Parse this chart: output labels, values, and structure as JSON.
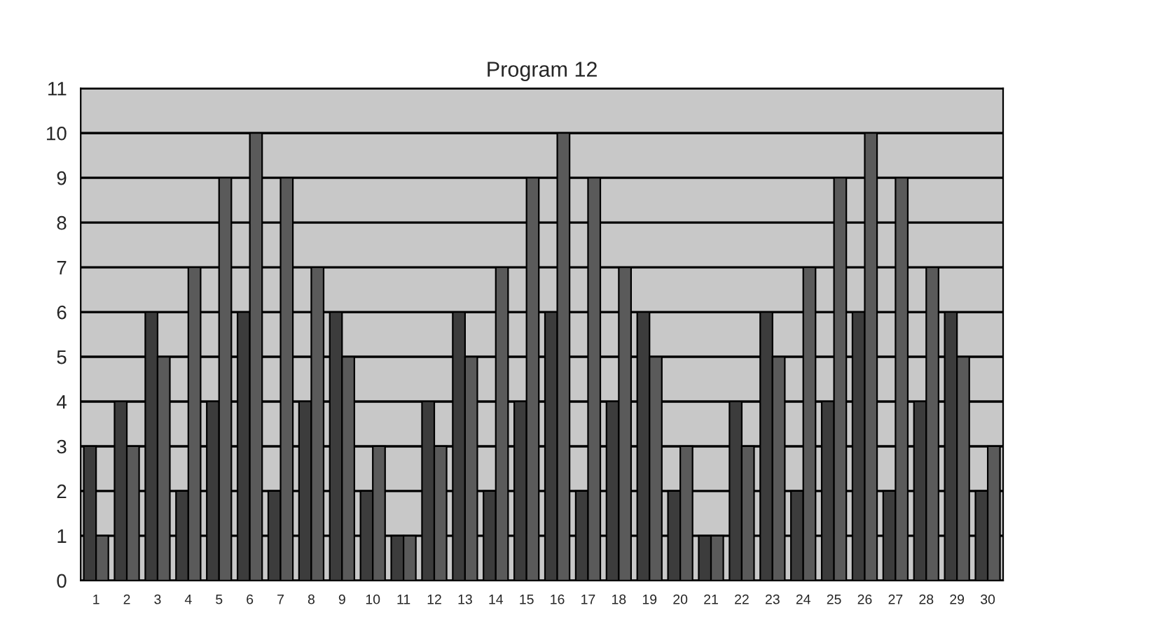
{
  "chart_data": {
    "type": "bar",
    "title": "Program 12",
    "categories": [
      "1",
      "2",
      "3",
      "4",
      "5",
      "6",
      "7",
      "8",
      "9",
      "10",
      "11",
      "12",
      "13",
      "14",
      "15",
      "16",
      "17",
      "18",
      "19",
      "20",
      "21",
      "22",
      "23",
      "24",
      "25",
      "26",
      "27",
      "28",
      "29",
      "30"
    ],
    "series": [
      {
        "color": "#3c3c3c",
        "values": [
          3,
          4,
          6,
          2,
          4,
          6,
          2,
          4,
          6,
          2,
          1,
          4,
          6,
          2,
          4,
          6,
          2,
          4,
          6,
          2,
          1,
          4,
          6,
          2,
          4,
          6,
          2,
          4,
          6,
          2
        ]
      },
      {
        "color": "#5a5a5a",
        "values": [
          1,
          3,
          5,
          7,
          9,
          10,
          9,
          7,
          5,
          3,
          1,
          3,
          5,
          7,
          9,
          10,
          9,
          7,
          5,
          3,
          1,
          3,
          5,
          7,
          9,
          10,
          9,
          7,
          5,
          3
        ]
      }
    ],
    "ylim": [
      0,
      11
    ],
    "yticks": [
      0,
      1,
      2,
      3,
      4,
      5,
      6,
      7,
      8,
      9,
      10,
      11
    ],
    "grid": "y"
  }
}
